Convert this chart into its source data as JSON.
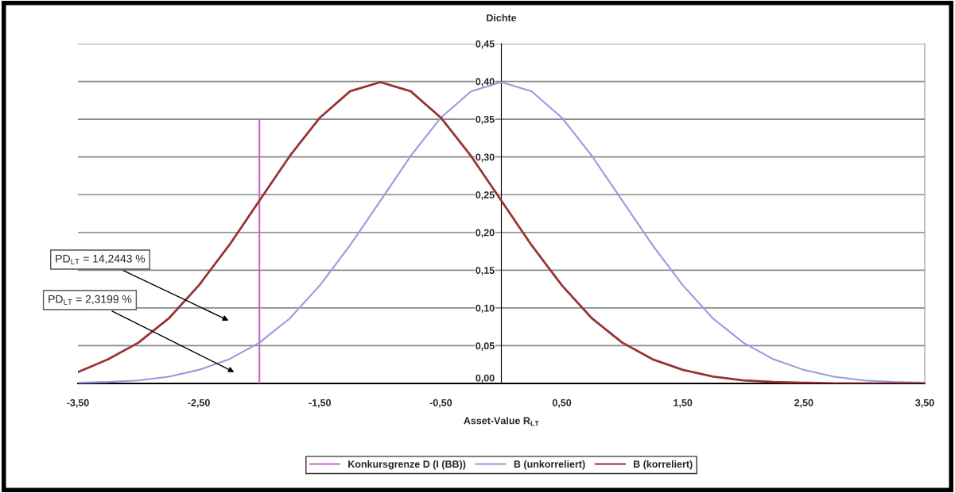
{
  "chart_data": {
    "type": "line",
    "xlabel": "Asset-Value R$_{LT}$",
    "ylabel": "Dichte",
    "x": [
      -3.5,
      -3.25,
      -3.0,
      -2.75,
      -2.5,
      -2.25,
      -2.0,
      -1.75,
      -1.5,
      -1.25,
      -1.0,
      -0.75,
      -0.5,
      -0.25,
      0.0,
      0.25,
      0.5,
      0.75,
      1.0,
      1.25,
      1.5,
      1.75,
      2.0,
      2.25,
      2.5,
      2.75,
      3.0,
      3.25,
      3.5
    ],
    "series": [
      {
        "name": "Konkursgrenze D (I (BB))",
        "color": "#cc66cc",
        "x": [
          -2.0,
          -2.0
        ],
        "values": [
          0.0,
          0.35
        ]
      },
      {
        "name": "B (unkorreliert)",
        "color": "#9999dd",
        "values": [
          0.001,
          0.002,
          0.004,
          0.009,
          0.018,
          0.032,
          0.054,
          0.086,
          0.13,
          0.183,
          0.242,
          0.301,
          0.352,
          0.387,
          0.399,
          0.387,
          0.352,
          0.301,
          0.242,
          0.183,
          0.13,
          0.086,
          0.054,
          0.032,
          0.018,
          0.009,
          0.004,
          0.002,
          0.001
        ]
      },
      {
        "name": "B (korreliert)",
        "color": "#993333",
        "values": [
          0.015,
          0.032,
          0.054,
          0.086,
          0.13,
          0.183,
          0.242,
          0.301,
          0.352,
          0.387,
          0.399,
          0.387,
          0.352,
          0.301,
          0.242,
          0.183,
          0.13,
          0.086,
          0.054,
          0.032,
          0.018,
          0.009,
          0.004,
          0.002,
          0.001,
          0.0,
          0.0,
          0.0,
          0.0
        ]
      }
    ],
    "xlim": [
      -3.5,
      3.5
    ],
    "xticks": [
      {
        "value": -3.5,
        "label": "-3,50"
      },
      {
        "value": -2.5,
        "label": "-2,50"
      },
      {
        "value": -1.5,
        "label": "-1,50"
      },
      {
        "value": -0.5,
        "label": "-0,50"
      },
      {
        "value": 0.5,
        "label": "0,50"
      },
      {
        "value": 1.5,
        "label": "1,50"
      },
      {
        "value": 2.5,
        "label": "2,50"
      },
      {
        "value": 3.5,
        "label": "3,50"
      }
    ],
    "ylim": [
      0,
      0.45
    ],
    "yticks": [
      {
        "value": 0,
        "label": "0,00"
      },
      {
        "value": 0.05,
        "label": "0,05"
      },
      {
        "value": 0.1,
        "label": "0,10"
      },
      {
        "value": 0.15,
        "label": "0,15"
      },
      {
        "value": 0.2,
        "label": "0,20"
      },
      {
        "value": 0.25,
        "label": "0,25"
      },
      {
        "value": 0.3,
        "label": "0,30"
      },
      {
        "value": 0.35,
        "label": "0,35"
      },
      {
        "value": 0.4,
        "label": "0,40"
      },
      {
        "value": 0.45,
        "label": "0,45"
      }
    ],
    "annotations": [
      "PD$_{LT}$ = 14,2443 %",
      "PD$_{LT}$ = 2,3199 %"
    ],
    "grid": "y",
    "legend": "bottom",
    "marker": "none",
    "line_style": "solid"
  }
}
